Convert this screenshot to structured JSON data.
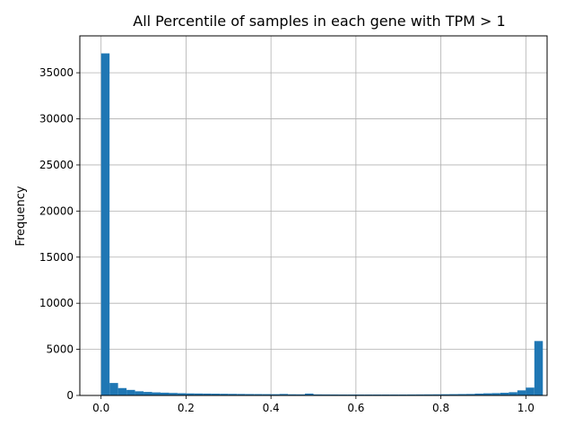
{
  "chart_data": {
    "type": "bar",
    "title": "All Percentile of samples in each gene with TPM > 1",
    "xlabel": "",
    "ylabel": "Frequency",
    "xlim": [
      -0.05,
      1.05
    ],
    "ylim": [
      0,
      39000
    ],
    "grid": true,
    "legend": "none",
    "bar_color": "#1f77b4",
    "x_ticks": [
      0.0,
      0.2,
      0.4,
      0.6,
      0.8,
      1.0
    ],
    "x_tick_labels": [
      "0.0",
      "0.2",
      "0.4",
      "0.6",
      "0.8",
      "1.0"
    ],
    "y_ticks": [
      0,
      5000,
      10000,
      15000,
      20000,
      25000,
      30000,
      35000
    ],
    "y_tick_labels": [
      "0",
      "5000",
      "10000",
      "15000",
      "20000",
      "25000",
      "30000",
      "35000"
    ],
    "bins": {
      "start": 0.0,
      "width": 0.02,
      "values": [
        37100,
        1350,
        800,
        600,
        450,
        380,
        330,
        300,
        270,
        240,
        220,
        210,
        200,
        190,
        180,
        170,
        160,
        150,
        145,
        140,
        135,
        160,
        125,
        120,
        200,
        115,
        110,
        105,
        100,
        100,
        100,
        100,
        100,
        100,
        100,
        100,
        105,
        110,
        115,
        120,
        130,
        140,
        150,
        160,
        200,
        230,
        250,
        290,
        350,
        550,
        850,
        5900
      ]
    }
  }
}
